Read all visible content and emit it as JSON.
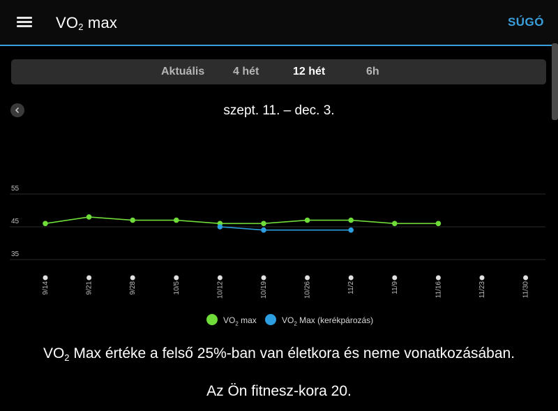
{
  "header": {
    "title_main": "VO",
    "title_sub": "2",
    "title_rest": " max",
    "help_label": "SÚGÓ"
  },
  "tabs": [
    {
      "label": "Aktuális",
      "active": false
    },
    {
      "label": "4 hét",
      "active": false
    },
    {
      "label": "12 hét",
      "active": true
    },
    {
      "label": "6h",
      "active": false
    }
  ],
  "date_range": "szept. 11. – dec. 3.",
  "chart_data": {
    "type": "line",
    "ylim": [
      35,
      55
    ],
    "y_ticks": [
      "55",
      "45",
      "35"
    ],
    "y_tick_values": [
      55,
      45,
      35
    ],
    "categories": [
      "9/14",
      "9/21",
      "9/28",
      "10/5",
      "10/12",
      "10/19",
      "10/26",
      "11/2",
      "11/9",
      "11/16",
      "11/23",
      "11/30"
    ],
    "series": [
      {
        "name": "VO₂ max",
        "color": "#6fdc3a",
        "values": [
          46,
          48,
          47,
          47,
          46,
          46,
          47,
          47,
          46,
          46,
          null,
          null
        ]
      },
      {
        "name": "VO₂ Max (kerékpározás)",
        "color": "#2d9fe0",
        "values": [
          null,
          null,
          null,
          null,
          45,
          44,
          null,
          44,
          null,
          null,
          null,
          null
        ]
      }
    ],
    "grid": true,
    "legend_position": "bottom"
  },
  "legend": {
    "item1_main": "VO",
    "item1_sub": "2",
    "item1_rest": " max",
    "item2_main": "VO",
    "item2_sub": "2",
    "item2_rest": " Max (kerékpározás)"
  },
  "info": {
    "line1_main": "VO",
    "line1_sub": "2",
    "line1_rest": " Max értéke a felső 25%-ban van életkora és neme vonatkozásában.",
    "line2": "Az Ön fitnesz-kora 20."
  }
}
